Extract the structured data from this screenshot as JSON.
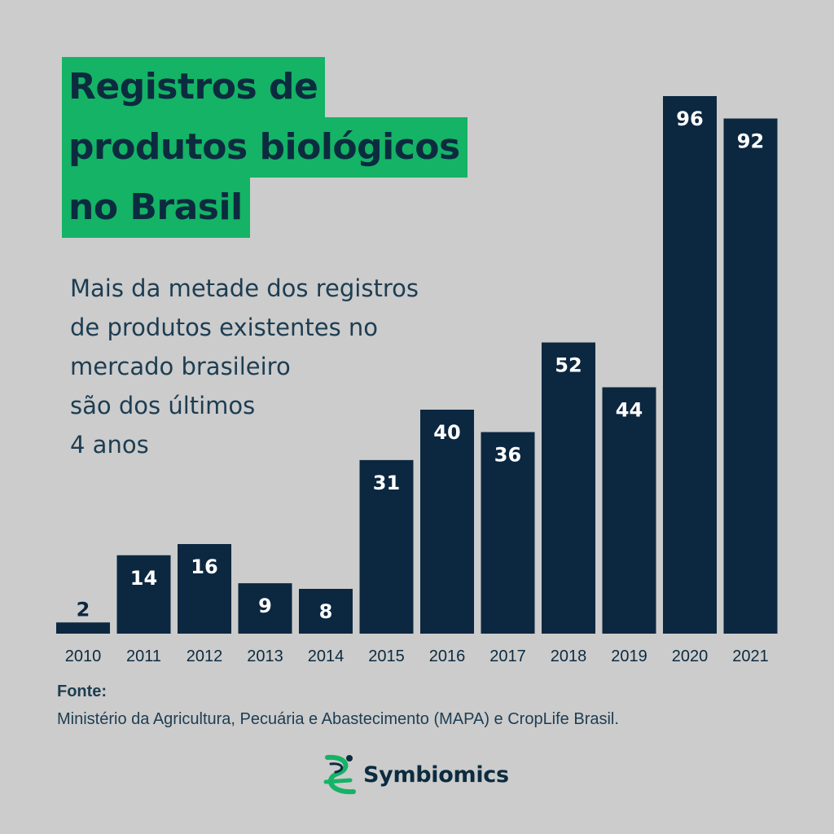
{
  "title": {
    "lines": [
      "Registros de",
      "produtos biológicos",
      "no Brasil"
    ]
  },
  "subtitle": {
    "lines": [
      "Mais da metade dos registros",
      "de produtos existentes no",
      "mercado brasileiro",
      "são dos últimos",
      "4 anos"
    ]
  },
  "source": {
    "label": "Fonte:",
    "text": "Ministério da Agricultura, Pecuária e Abastecimento (MAPA) e CropLife Brasil."
  },
  "logo": {
    "name": "Symbiomics",
    "icon": "helix-logo-icon"
  },
  "colors": {
    "background": "#cccccc",
    "bar": "#0c2740",
    "bar_label": "#ffffff",
    "accent": "#14b366",
    "text": "#1d3d52"
  },
  "chart_data": {
    "type": "bar",
    "title": "Registros de produtos biológicos no Brasil",
    "xlabel": "",
    "ylabel": "",
    "categories": [
      "2010",
      "2011",
      "2012",
      "2013",
      "2014",
      "2015",
      "2016",
      "2017",
      "2018",
      "2019",
      "2020",
      "2021"
    ],
    "values": [
      2,
      14,
      16,
      9,
      8,
      31,
      40,
      36,
      52,
      44,
      96,
      92
    ],
    "ylim": [
      0,
      96
    ],
    "grid": false,
    "data_labels": true
  }
}
